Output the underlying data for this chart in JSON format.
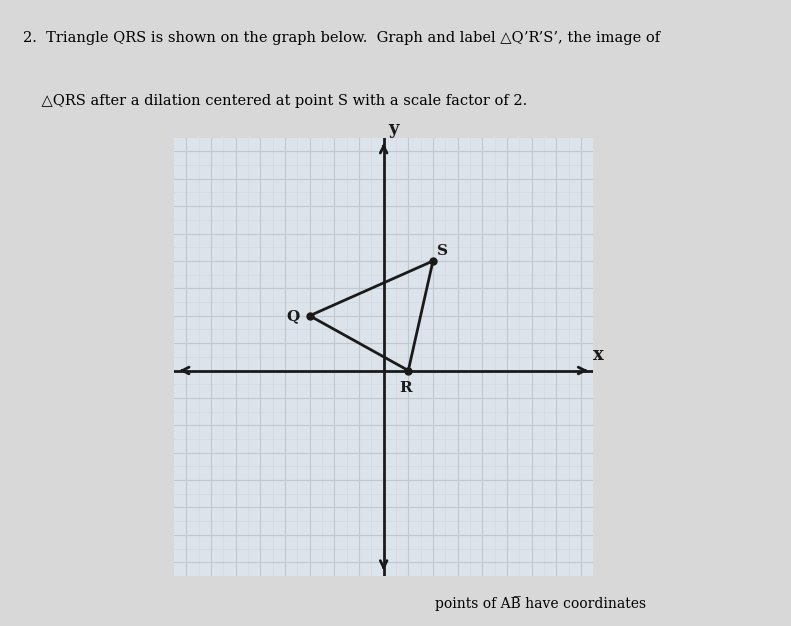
{
  "title_line1": "2.  Triangle ",
  "title_line1_italic": "QRS",
  "title_line1_rest": " is shown on the graph below.  Graph and label △Q’R’S’, the image of",
  "title_line2": "    △QRS after a dilation centered at point S with a scale factor of 2.",
  "Q": [
    -3,
    2
  ],
  "R": [
    1,
    0
  ],
  "S": [
    2,
    4
  ],
  "grid_color": "#c0c8d0",
  "grid_minor_color": "#d0d8e0",
  "grid_bg": "#dce3ea",
  "triangle_color": "#1a1a1a",
  "axis_color": "#1a1a1a",
  "label_color": "#1a1a1a",
  "dot_color": "#1a1a1a",
  "page_bg": "#d8d8d8",
  "xlim": [
    -8,
    8
  ],
  "ylim": [
    -7,
    8
  ],
  "xlabel": "x",
  "ylabel": "y",
  "figsize": [
    7.91,
    6.26
  ],
  "dpi": 100
}
